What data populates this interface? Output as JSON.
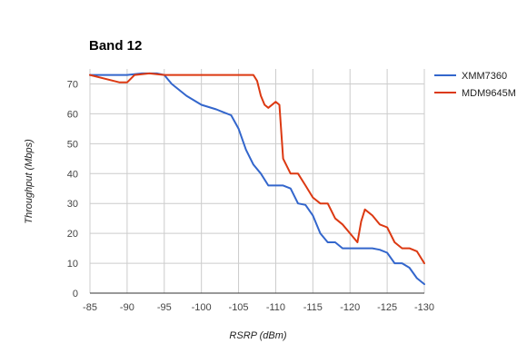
{
  "chart_data": {
    "type": "line",
    "title": "Band 12",
    "xlabel": "RSRP (dBm)",
    "ylabel": "Throughput (Mbps)",
    "xlim": [
      -85,
      -130
    ],
    "ylim": [
      0,
      75
    ],
    "x_ticks": [
      "-85",
      "-90",
      "-95",
      "-100",
      "-105",
      "-110",
      "-115",
      "-120",
      "-125",
      "-130"
    ],
    "y_ticks": [
      "0",
      "10",
      "20",
      "30",
      "40",
      "50",
      "60",
      "70"
    ],
    "grid": true,
    "legend_position": "right",
    "series": [
      {
        "name": "XMM7360",
        "color": "#3366cc",
        "x": [
          -85,
          -89,
          -90,
          -92,
          -94,
          -95,
          -96,
          -98,
          -100,
          -102,
          -103,
          -104,
          -105,
          -106,
          -107,
          -108,
          -109,
          -110,
          -111,
          -112,
          -113,
          -114,
          -115,
          -116,
          -117,
          -118,
          -119,
          -120,
          -121,
          -122,
          -123,
          -124,
          -125,
          -126,
          -127,
          -128,
          -129,
          -130
        ],
        "values": [
          73,
          73,
          73,
          73.5,
          73.5,
          73,
          70,
          66,
          63,
          61.5,
          60.5,
          59.5,
          55,
          48,
          43,
          40,
          36,
          36,
          36,
          35,
          30,
          29.5,
          26,
          20,
          17,
          17,
          15,
          15,
          15,
          15,
          15,
          14.5,
          13.5,
          10,
          10,
          8.5,
          5,
          3
        ]
      },
      {
        "name": "MDM9645M",
        "color": "#dc3912",
        "x": [
          -85,
          -89,
          -90,
          -91,
          -93,
          -95,
          -100,
          -105,
          -107,
          -107.5,
          -108,
          -108.5,
          -109,
          -110,
          -110.5,
          -111,
          -112,
          -113,
          -114,
          -115,
          -116,
          -117,
          -118,
          -119,
          -120,
          -121,
          -121.5,
          -122,
          -123,
          -124,
          -125,
          -126,
          -127,
          -128,
          -129,
          -130
        ],
        "values": [
          73,
          70.5,
          70.5,
          73,
          73.5,
          73,
          73,
          73,
          73,
          71,
          66,
          63,
          62,
          64,
          63,
          45,
          40,
          40,
          36,
          32,
          30,
          30,
          25,
          23,
          20,
          17,
          24,
          28,
          26,
          23,
          22,
          17,
          15,
          15,
          14,
          10
        ]
      }
    ]
  }
}
